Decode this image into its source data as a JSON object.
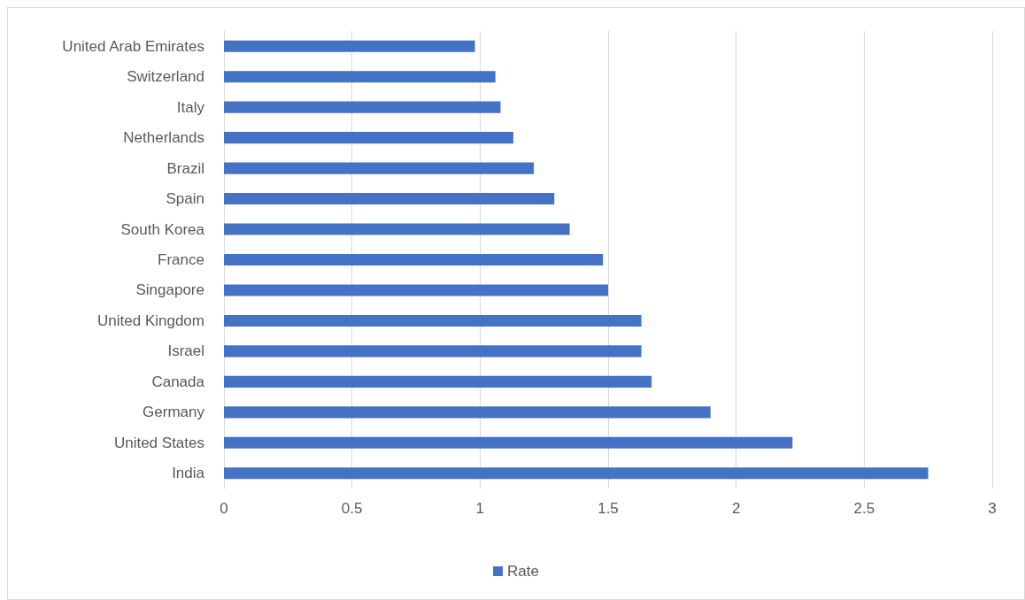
{
  "chart_data": {
    "type": "bar",
    "orientation": "horizontal",
    "categories": [
      "United Arab Emirates",
      "Switzerland",
      "Italy",
      "Netherlands",
      "Brazil",
      "Spain",
      "South Korea",
      "France",
      "Singapore",
      "United Kingdom",
      "Israel",
      "Canada",
      "Germany",
      "United States",
      "India"
    ],
    "series": [
      {
        "name": "Rate",
        "color": "#4472c4",
        "values": [
          0.98,
          1.06,
          1.08,
          1.13,
          1.21,
          1.29,
          1.35,
          1.48,
          1.5,
          1.63,
          1.63,
          1.67,
          1.9,
          2.22,
          2.75
        ]
      }
    ],
    "xlim": [
      0,
      3
    ],
    "xticks": [
      0,
      0.5,
      1,
      1.5,
      2,
      2.5,
      3
    ],
    "grid": "x",
    "legend": "bottom"
  }
}
